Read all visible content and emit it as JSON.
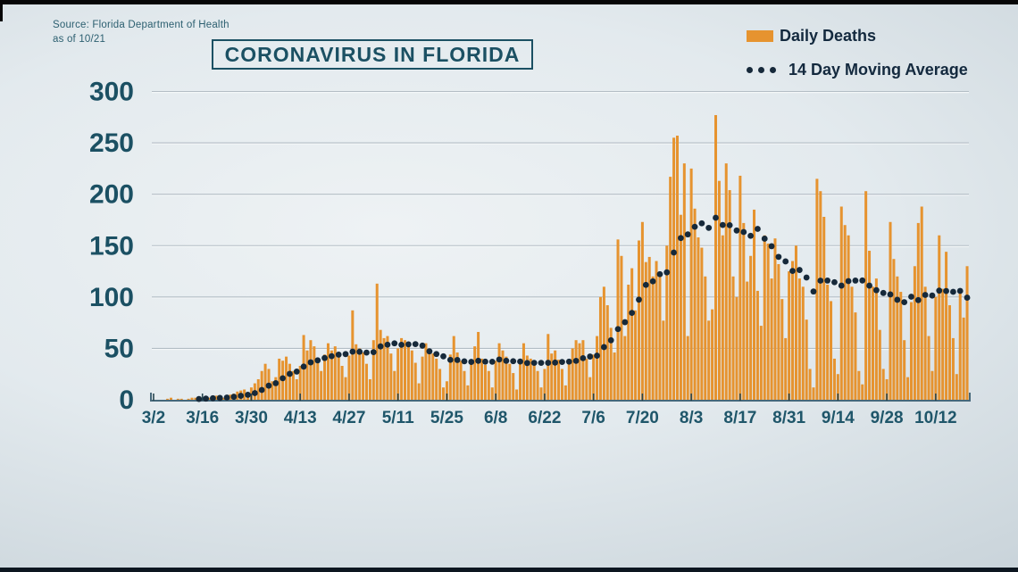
{
  "source": {
    "line1": "Source: Florida Department of Health",
    "line2": "as of 10/21"
  },
  "title": "CORONAVIRUS IN FLORIDA",
  "legend": {
    "bars_label": "Daily Deaths",
    "line_label": "14 Day Moving Average"
  },
  "colors": {
    "bar": "#e6932f",
    "dot": "#16293a",
    "title_text": "#1b5063",
    "axis_text": "#1f566a",
    "legend_text": "#13293e",
    "grid": "#b3bdc5",
    "grid_highlight": "#f6f9fa",
    "axis_line": "#46687a",
    "background_light": "#eef2f4",
    "background_dark": "#bec9d1"
  },
  "chart_data": {
    "type": "bar",
    "title": "CORONAVIRUS IN FLORIDA",
    "xlabel": "",
    "ylabel": "",
    "x_start": "3/2",
    "x_end": "10/21",
    "n_days": 234,
    "ylim": [
      0,
      300
    ],
    "yticks": [
      0,
      50,
      100,
      150,
      200,
      250,
      300
    ],
    "xtick_labels": [
      "3/2",
      "3/16",
      "3/30",
      "4/13",
      "4/27",
      "5/11",
      "5/25",
      "6/8",
      "6/22",
      "7/6",
      "7/20",
      "8/3",
      "8/17",
      "8/31",
      "9/14",
      "9/28",
      "10/12"
    ],
    "xtick_interval_days": 14,
    "grid": true,
    "legend_position": "top-right",
    "series": [
      {
        "name": "Daily Deaths",
        "type": "bar",
        "values": [
          0,
          0,
          0,
          0,
          1,
          2,
          0,
          1,
          1,
          0,
          1,
          2,
          2,
          1,
          2,
          3,
          2,
          3,
          4,
          3,
          2,
          4,
          5,
          6,
          8,
          9,
          10,
          7,
          12,
          16,
          20,
          28,
          35,
          30,
          18,
          22,
          40,
          38,
          42,
          35,
          28,
          20,
          33,
          63,
          48,
          58,
          52,
          40,
          28,
          44,
          55,
          48,
          52,
          46,
          33,
          22,
          43,
          87,
          54,
          50,
          46,
          35,
          20,
          58,
          113,
          68,
          60,
          62,
          45,
          28,
          50,
          60,
          58,
          52,
          48,
          36,
          16,
          42,
          55,
          48,
          45,
          40,
          30,
          12,
          18,
          44,
          62,
          46,
          38,
          28,
          14,
          36,
          52,
          66,
          40,
          34,
          28,
          12,
          38,
          55,
          48,
          42,
          35,
          26,
          10,
          35,
          55,
          43,
          40,
          36,
          28,
          12,
          30,
          64,
          45,
          48,
          39,
          30,
          14,
          36,
          50,
          58,
          55,
          58,
          40,
          22,
          44,
          62,
          100,
          110,
          92,
          70,
          46,
          156,
          140,
          62,
          112,
          128,
          87,
          155,
          173,
          134,
          139,
          120,
          135,
          124,
          77,
          150,
          217,
          255,
          257,
          180,
          230,
          62,
          225,
          186,
          158,
          148,
          120,
          77,
          88,
          277,
          213,
          160,
          230,
          204,
          120,
          100,
          218,
          172,
          115,
          140,
          185,
          106,
          72,
          160,
          152,
          118,
          157,
          132,
          98,
          60,
          125,
          135,
          150,
          118,
          110,
          78,
          30,
          12,
          215,
          203,
          178,
          112,
          96,
          40,
          25,
          188,
          170,
          160,
          110,
          85,
          28,
          15,
          203,
          145,
          110,
          118,
          68,
          30,
          20,
          173,
          137,
          120,
          105,
          58,
          22,
          95,
          130,
          172,
          188,
          110,
          62,
          28,
          100,
          160,
          108,
          144,
          92,
          60,
          25,
          104,
          80,
          130
        ]
      },
      {
        "name": "14 Day Moving Average",
        "type": "dotted_line",
        "window_days": 14,
        "plotted_every_days": 2,
        "derived_from": "Daily Deaths"
      }
    ]
  }
}
